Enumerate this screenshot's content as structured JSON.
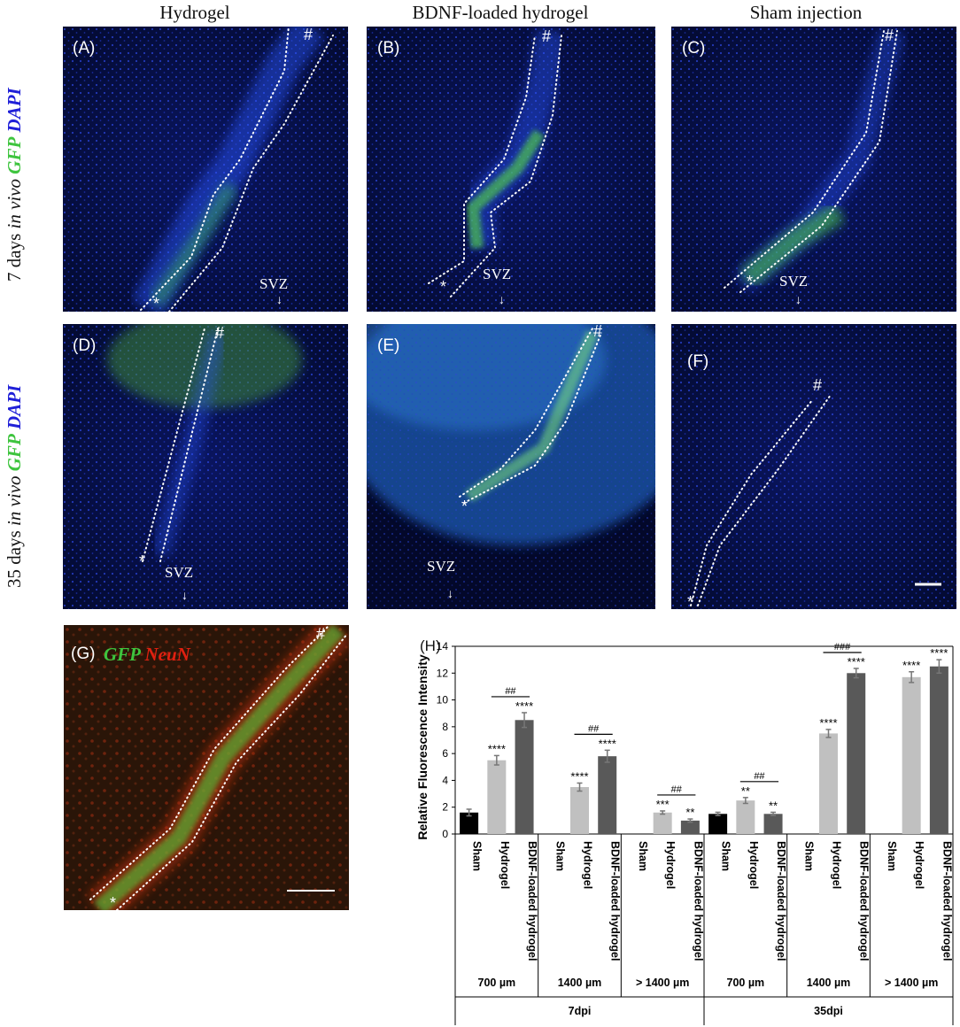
{
  "columns": [
    "Hydrogel",
    "BDNF-loaded hydrogel",
    "Sham injection"
  ],
  "rows": {
    "row1": {
      "prefix": "7 days ",
      "italic": "in vivo",
      "gfp": "GFP",
      "dapi": "DAPI"
    },
    "row2": {
      "prefix": "35 days ",
      "italic": "in vivo",
      "gfp": "GFP",
      "dapi": "DAPI"
    }
  },
  "panels": {
    "A": {
      "label": "(A)",
      "hash": "#",
      "star": "*",
      "svz": "SVZ"
    },
    "B": {
      "label": "(B)",
      "hash": "#",
      "star": "*",
      "svz": "SVZ"
    },
    "C": {
      "label": "(C)",
      "hash": "#",
      "star": "*",
      "svz": "SVZ"
    },
    "D": {
      "label": "(D)",
      "hash": "#",
      "star": "*",
      "svz": "SVZ"
    },
    "E": {
      "label": "(E)",
      "hash": "#",
      "star": "*",
      "svz": "SVZ"
    },
    "F": {
      "label": "(F)",
      "hash": "#",
      "star": "*"
    },
    "G": {
      "label": "(G)",
      "hash": "#",
      "star": "*",
      "gfp": "GFP",
      "neun": "NeuN"
    }
  },
  "chart_data": {
    "type": "bar",
    "panel_label": "(H)",
    "ylabel": "Relative Fluorescence Intensity",
    "ylim": [
      0,
      14
    ],
    "yticks": [
      0,
      2,
      4,
      6,
      8,
      10,
      12,
      14
    ],
    "bars": [
      {
        "label": "Sham",
        "value": 1.6,
        "err": 0.25,
        "sig": "",
        "color": "#000000"
      },
      {
        "label": "Hydrogel",
        "value": 5.5,
        "err": 0.35,
        "sig": "****",
        "color": "#c0c0c0"
      },
      {
        "label": "BDNF-loaded hydrogel",
        "value": 8.5,
        "err": 0.55,
        "sig": "****",
        "color": "#595959"
      },
      {
        "label": "Sham",
        "value": null,
        "err": null,
        "sig": "",
        "color": "#000000"
      },
      {
        "label": "Hydrogel",
        "value": 3.5,
        "err": 0.3,
        "sig": "****",
        "color": "#c0c0c0"
      },
      {
        "label": "BDNF-loaded hydrogel",
        "value": 5.8,
        "err": 0.45,
        "sig": "****",
        "color": "#595959"
      },
      {
        "label": "Sham",
        "value": null,
        "err": null,
        "sig": "",
        "color": "#000000"
      },
      {
        "label": "Hydrogel",
        "value": 1.6,
        "err": 0.12,
        "sig": "***",
        "color": "#c0c0c0"
      },
      {
        "label": "BDNF-loaded hydrogel",
        "value": 1.0,
        "err": 0.12,
        "sig": "**",
        "color": "#595959"
      },
      {
        "label": "Sham",
        "value": 1.5,
        "err": 0.12,
        "sig": "",
        "color": "#000000"
      },
      {
        "label": "Hydrogel",
        "value": 2.5,
        "err": 0.22,
        "sig": "**",
        "color": "#c0c0c0"
      },
      {
        "label": "BDNF-loaded hydrogel",
        "value": 1.5,
        "err": 0.12,
        "sig": "**",
        "color": "#595959"
      },
      {
        "label": "Sham",
        "value": null,
        "err": null,
        "sig": "",
        "color": "#000000"
      },
      {
        "label": "Hydrogel",
        "value": 7.5,
        "err": 0.3,
        "sig": "****",
        "color": "#c0c0c0"
      },
      {
        "label": "BDNF-loaded hydrogel",
        "value": 12.0,
        "err": 0.35,
        "sig": "****",
        "color": "#595959"
      },
      {
        "label": "Sham",
        "value": null,
        "err": null,
        "sig": "",
        "color": "#000000"
      },
      {
        "label": "Hydrogel",
        "value": 11.7,
        "err": 0.4,
        "sig": "****",
        "color": "#c0c0c0"
      },
      {
        "label": "BDNF-loaded hydrogel",
        "value": 12.5,
        "err": 0.5,
        "sig": "****",
        "color": "#595959"
      }
    ],
    "distances": [
      "700 µm",
      "1400 µm",
      "> 1400 µm",
      "700 µm",
      "1400 µm",
      "> 1400 µm"
    ],
    "timepoints": [
      "7dpi",
      "35dpi"
    ],
    "comparisons": [
      {
        "group": 0,
        "label": "##"
      },
      {
        "group": 1,
        "label": "##"
      },
      {
        "group": 2,
        "label": "##"
      },
      {
        "group": 3,
        "label": "##"
      },
      {
        "group": 4,
        "label": "###"
      }
    ]
  }
}
